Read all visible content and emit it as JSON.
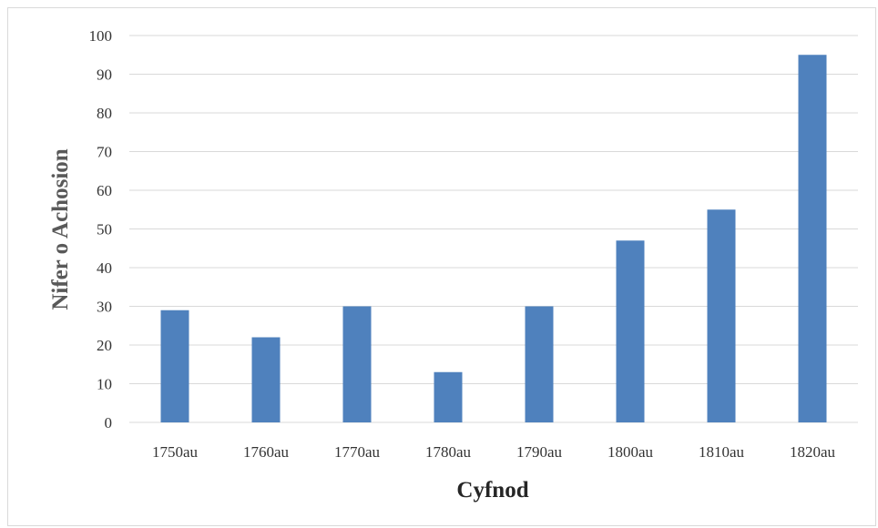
{
  "chart_data": {
    "type": "bar",
    "title": "",
    "xlabel": "Cyfnod",
    "ylabel": "Nifer o Achosion",
    "categories": [
      "1750au",
      "1760au",
      "1770au",
      "1780au",
      "1790au",
      "1800au",
      "1810au",
      "1820au"
    ],
    "values": [
      29,
      22,
      30,
      13,
      30,
      47,
      55,
      95
    ],
    "ylim": [
      0,
      100
    ],
    "yticks": [
      0,
      10,
      20,
      30,
      40,
      50,
      60,
      70,
      80,
      90,
      100
    ],
    "grid": true,
    "legend": "none",
    "bar_color": "#4f81bd",
    "grid_color": "#d9d9d9",
    "text_color": "#333333",
    "title_color": "#262626",
    "ylabel_color": "#595959"
  }
}
